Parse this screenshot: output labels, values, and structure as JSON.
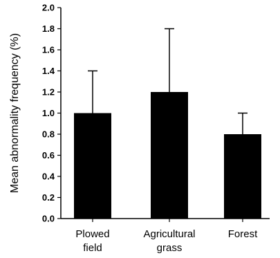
{
  "chart_data": {
    "type": "bar",
    "categories": [
      [
        "Plowed",
        "field"
      ],
      [
        "Agricultural",
        "grass"
      ],
      [
        "Forest"
      ]
    ],
    "values": [
      1.0,
      1.2,
      0.8
    ],
    "error_upper": [
      0.4,
      0.6,
      0.2
    ],
    "ylabel": "Mean abnormality frequency (%)",
    "ylim": [
      0,
      2.0
    ],
    "yticks": [
      0.0,
      0.2,
      0.4,
      0.6,
      0.8,
      1.0,
      1.2,
      1.4,
      1.6,
      1.8,
      2.0
    ],
    "grid": false,
    "bar_color": "#000000"
  }
}
